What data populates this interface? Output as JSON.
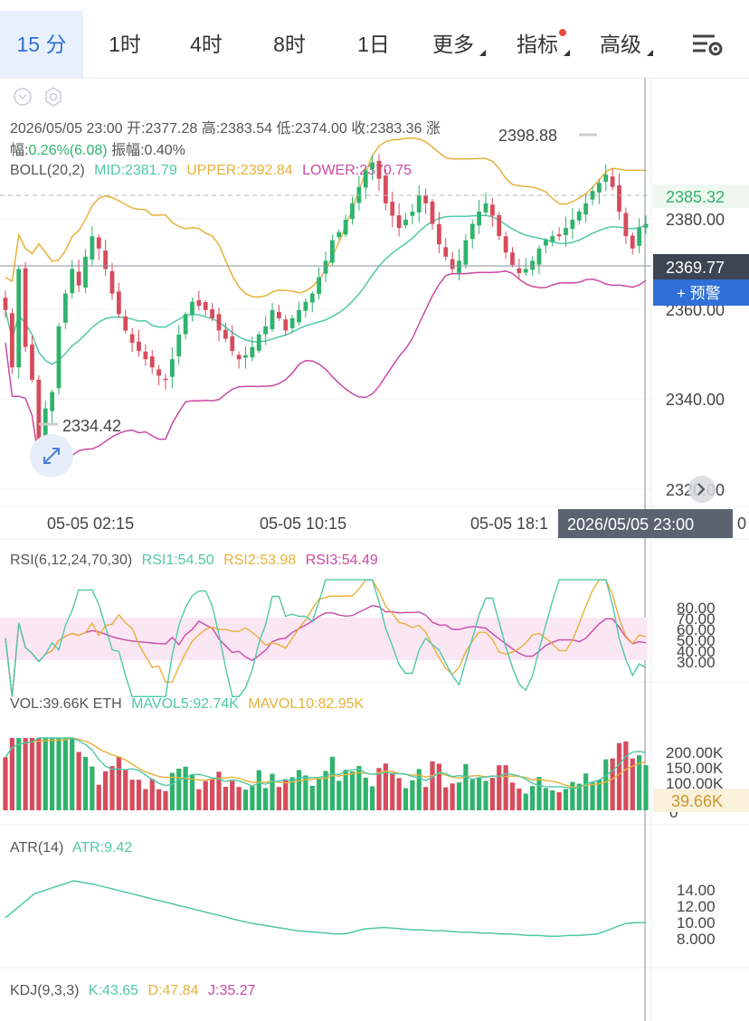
{
  "tabs": [
    {
      "label": "15 分",
      "active": true
    },
    {
      "label": "1时"
    },
    {
      "label": "4时"
    },
    {
      "label": "8时"
    },
    {
      "label": "1日"
    },
    {
      "label": "更多",
      "dropdown": true
    },
    {
      "label": "指标",
      "dropdown": true,
      "badge": true
    },
    {
      "label": "高级",
      "dropdown": true
    }
  ],
  "colors": {
    "up": "#2fb36c",
    "down": "#d64c5c",
    "mid": "#4fc8a8",
    "upper": "#e7b13a",
    "lower": "#c94aa4",
    "accent": "#2f6fd8"
  },
  "candle_info": {
    "line1": "2026/05/05 23:00  开:2377.28  高:2383.54  低:2374.00  收:2383.36  涨",
    "line2_prefix": "幅:",
    "change": "0.26%(6.08)",
    "amplitude": "  振幅:0.40%"
  },
  "boll": {
    "label": "BOLL(20,2)",
    "mid": "MID:2381.79",
    "upper": "UPPER:2392.84",
    "lower": "LOWER:2370.75"
  },
  "price_axis": {
    "ticks": [
      "2380.00",
      "2360.00",
      "2340.00",
      "2320.00"
    ],
    "last_price": "2385.32",
    "crosshair_price": "2369.77",
    "alert_button": "+ 预警"
  },
  "extremes": {
    "high": "2398.88",
    "low": "2334.42"
  },
  "time_axis": {
    "labels": [
      "05-05 02:15",
      "05-05 10:15",
      "05-05 18:1"
    ],
    "crosshair_time": "2026/05/05 23:00",
    "edge_label": "0"
  },
  "rsi": {
    "label": "RSI(6,12,24,70,30)",
    "rsi1": "RSI1:54.50",
    "rsi2": "RSI2:53.98",
    "rsi3": "RSI3:54.49",
    "ticks": [
      "80.00",
      "70.00",
      "60.00",
      "50.00",
      "40.00",
      "30.00"
    ]
  },
  "vol": {
    "label": "VOL:39.66K ETH",
    "mavol5": "MAVOL5:92.74K",
    "mavol10": "MAVOL10:82.95K",
    "ticks": [
      "200.00K",
      "150.00K",
      "100.00K",
      "0"
    ],
    "current": "39.66K"
  },
  "atr": {
    "label": "ATR(14)",
    "value": "ATR:9.42",
    "ticks": [
      "14.00",
      "12.00",
      "10.00",
      "8.000"
    ]
  },
  "kdj": {
    "label": "KDJ(9,3,3)",
    "k": "K:43.65",
    "d": "D:47.84",
    "j": "J:35.27"
  },
  "chart_data": {
    "type": "candlestick",
    "interval": "15分",
    "y_range": [
      2315,
      2412
    ],
    "close": [
      2362,
      2348,
      2372,
      2353,
      2345,
      2330,
      2338,
      2342,
      2358,
      2366,
      2372,
      2368,
      2375,
      2380,
      2377,
      2372,
      2366,
      2361,
      2357,
      2354,
      2352,
      2350,
      2348,
      2346,
      2345,
      2350,
      2356,
      2361,
      2364,
      2363,
      2362,
      2360,
      2357,
      2355,
      2352,
      2350,
      2351,
      2353,
      2356,
      2358,
      2362,
      2360,
      2357,
      2360,
      2362,
      2364,
      2366,
      2370,
      2374,
      2379,
      2381,
      2384,
      2388,
      2392,
      2396,
      2398,
      2394,
      2388,
      2385,
      2382,
      2384,
      2386,
      2390,
      2388,
      2383,
      2378,
      2375,
      2372,
      2374,
      2379,
      2383,
      2386,
      2388,
      2385,
      2380,
      2376,
      2373,
      2371,
      2372,
      2374,
      2377,
      2379,
      2380,
      2380,
      2382,
      2384,
      2386,
      2388,
      2391,
      2393,
      2395,
      2392,
      2386,
      2380,
      2377,
      2382,
      2383
    ],
    "atr_range": [
      6.5,
      15.5
    ],
    "atr": [
      10,
      11,
      12,
      13,
      13.4,
      13.8,
      14.2,
      14.6,
      14.4,
      14.2,
      13.9,
      13.6,
      13.3,
      13,
      12.7,
      12.4,
      12.1,
      11.8,
      11.5,
      11.2,
      10.9,
      10.6,
      10.3,
      10,
      9.7,
      9.4,
      9.2,
      9,
      8.8,
      8.6,
      8.4,
      8.3,
      8.2,
      8.1,
      8,
      8,
      8.3,
      8.6,
      8.7,
      8.8,
      8.7,
      8.6,
      8.5,
      8.5,
      8.4,
      8.4,
      8.3,
      8.2,
      8.2,
      8.1,
      8.1,
      8,
      8,
      7.9,
      7.8,
      7.8,
      7.7,
      7.7,
      7.8,
      7.8,
      7.9,
      8,
      8.4,
      8.9,
      9.3,
      9.4,
      9.4
    ],
    "rsi_range": [
      25,
      90
    ]
  }
}
